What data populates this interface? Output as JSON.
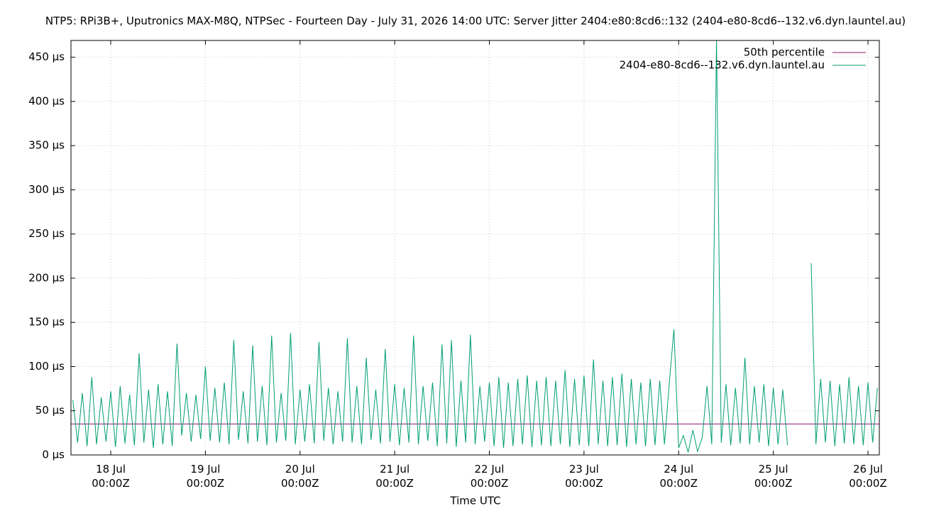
{
  "chart_data": {
    "type": "line",
    "title": "NTP5: RPi3B+, Uputronics MAX-M8Q, NTPSec - Fourteen Day - July 31, 2026 14:00 UTC: Server Jitter 2404:e80:8cd6::132 (2404-e80-8cd6--132.v6.dyn.launtel.au)",
    "x_label": "Time UTC",
    "xlim": [
      17.58,
      26.12
    ],
    "ylim": [
      0,
      469
    ],
    "xticks": [
      {
        "value": 18,
        "label": "18 Jul\n00:00Z"
      },
      {
        "value": 19,
        "label": "19 Jul\n00:00Z"
      },
      {
        "value": 20,
        "label": "20 Jul\n00:00Z"
      },
      {
        "value": 21,
        "label": "21 Jul\n00:00Z"
      },
      {
        "value": 22,
        "label": "22 Jul\n00:00Z"
      },
      {
        "value": 23,
        "label": "23 Jul\n00:00Z"
      },
      {
        "value": 24,
        "label": "24 Jul\n00:00Z"
      },
      {
        "value": 25,
        "label": "25 Jul\n00:00Z"
      },
      {
        "value": 26,
        "label": "26 Jul\n00:00Z"
      }
    ],
    "yticks": [
      {
        "value": 0,
        "label": "0 µs"
      },
      {
        "value": 50,
        "label": "50 µs"
      },
      {
        "value": 100,
        "label": "100 µs"
      },
      {
        "value": 150,
        "label": "150 µs"
      },
      {
        "value": 200,
        "label": "200 µs"
      },
      {
        "value": 250,
        "label": "250 µs"
      },
      {
        "value": 300,
        "label": "300 µs"
      },
      {
        "value": 350,
        "label": "350 µs"
      },
      {
        "value": 400,
        "label": "400 µs"
      },
      {
        "value": 450,
        "label": "450 µs"
      }
    ],
    "grid": true,
    "legend": "top-right",
    "series": [
      {
        "name": "50th percentile",
        "color": "#8e1a6e",
        "x": [
          17.58,
          26.12
        ],
        "values": [
          35,
          35
        ]
      },
      {
        "name": "2404-e80-8cd6--132.v6.dyn.launtel.au",
        "color": "#009e73",
        "x": [
          17.6,
          17.65,
          17.7,
          17.75,
          17.8,
          17.85,
          17.9,
          17.95,
          18.0,
          18.05,
          18.1,
          18.15,
          18.2,
          18.25,
          18.3,
          18.35,
          18.4,
          18.45,
          18.5,
          18.55,
          18.6,
          18.65,
          18.7,
          18.75,
          18.8,
          18.85,
          18.9,
          18.95,
          19.0,
          19.05,
          19.1,
          19.15,
          19.2,
          19.25,
          19.3,
          19.35,
          19.4,
          19.45,
          19.5,
          19.55,
          19.6,
          19.65,
          19.7,
          19.75,
          19.8,
          19.85,
          19.9,
          19.95,
          20.0,
          20.05,
          20.1,
          20.15,
          20.2,
          20.25,
          20.3,
          20.35,
          20.4,
          20.45,
          20.5,
          20.55,
          20.6,
          20.65,
          20.7,
          20.75,
          20.8,
          20.85,
          20.9,
          20.95,
          21.0,
          21.05,
          21.1,
          21.15,
          21.2,
          21.25,
          21.3,
          21.35,
          21.4,
          21.45,
          21.5,
          21.55,
          21.6,
          21.65,
          21.7,
          21.75,
          21.8,
          21.85,
          21.9,
          21.95,
          22.0,
          22.05,
          22.1,
          22.15,
          22.2,
          22.25,
          22.3,
          22.35,
          22.4,
          22.45,
          22.5,
          22.55,
          22.6,
          22.65,
          22.7,
          22.75,
          22.8,
          22.85,
          22.9,
          22.95,
          23.0,
          23.05,
          23.1,
          23.15,
          23.2,
          23.25,
          23.3,
          23.35,
          23.4,
          23.45,
          23.5,
          23.55,
          23.6,
          23.65,
          23.7,
          23.75,
          23.8,
          23.85,
          23.9,
          23.95,
          24.0,
          24.05,
          24.1,
          24.15,
          24.2,
          24.25,
          24.3,
          24.35,
          24.4,
          24.45,
          24.5,
          24.55,
          24.6,
          24.65,
          24.7,
          24.75,
          24.8,
          24.85,
          24.9,
          24.95,
          25.0,
          25.05,
          25.1,
          25.15,
          25.2,
          25.25,
          25.3,
          25.35,
          25.4,
          25.45,
          25.5,
          25.55,
          25.6,
          25.65,
          25.7,
          25.75,
          25.8,
          25.85,
          25.9,
          25.95,
          26.0,
          26.05,
          26.1
        ],
        "values": [
          62,
          14,
          70,
          10,
          88,
          12,
          65,
          15,
          72,
          9,
          78,
          13,
          68,
          11,
          115,
          14,
          74,
          8,
          80,
          12,
          72,
          10,
          126,
          22,
          70,
          15,
          68,
          18,
          100,
          16,
          76,
          14,
          82,
          12,
          130,
          17,
          72,
          13,
          124,
          15,
          78,
          11,
          135,
          14,
          70,
          16,
          138,
          12,
          74,
          15,
          80,
          13,
          128,
          16,
          76,
          12,
          72,
          15,
          132,
          14,
          78,
          12,
          110,
          17,
          74,
          13,
          120,
          15,
          80,
          11,
          76,
          14,
          135,
          12,
          78,
          16,
          82,
          10,
          125,
          13,
          130,
          9,
          84,
          14,
          136,
          12,
          78,
          15,
          82,
          10,
          88,
          8,
          82,
          10,
          86,
          12,
          90,
          9,
          84,
          11,
          88,
          10,
          84,
          12,
          96,
          9,
          86,
          11,
          90,
          10,
          108,
          12,
          84,
          10,
          88,
          11,
          92,
          9,
          86,
          12,
          82,
          10,
          86,
          11,
          84,
          12,
          80,
          142,
          8,
          22,
          3,
          28,
          4,
          20,
          78,
          12,
          470,
          14,
          80,
          11,
          76,
          13,
          110,
          12,
          78,
          14,
          80,
          10,
          76,
          12,
          74,
          11,
          null,
          null,
          null,
          null,
          217,
          12,
          86,
          14,
          84,
          10,
          80,
          13,
          88,
          12,
          78,
          11,
          82,
          14,
          76
        ]
      }
    ]
  }
}
